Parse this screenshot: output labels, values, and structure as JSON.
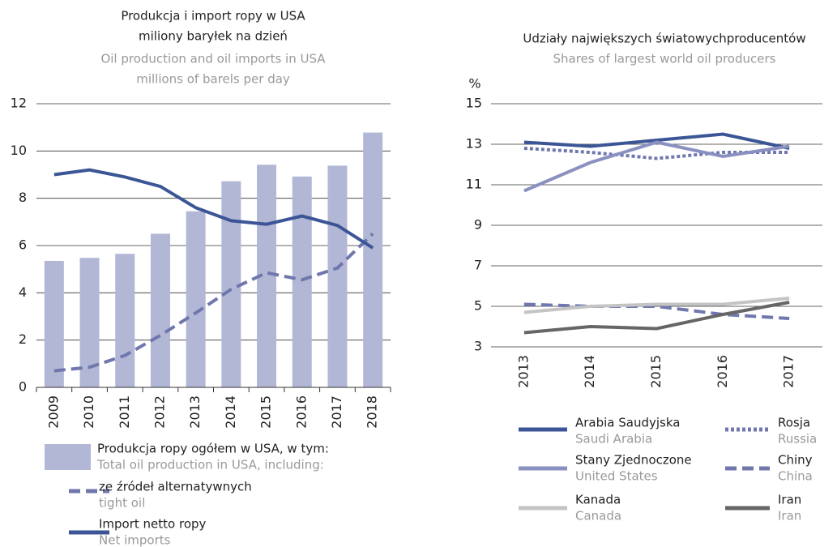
{
  "chart_data": [
    {
      "type": "combo",
      "title": "Produkcja i import ropy w USA",
      "subtitle": "miliony baryłek na dzień",
      "title_en": "Oil production and oil imports  in USA",
      "subtitle_en": "millions of barels per day",
      "categories": [
        "2009",
        "2010",
        "2011",
        "2012",
        "2013",
        "2014",
        "2015",
        "2016",
        "2017",
        "2018"
      ],
      "ylim": [
        0,
        12
      ],
      "yticks": [
        0,
        2,
        4,
        6,
        8,
        10,
        12
      ],
      "grid": true,
      "series": [
        {
          "name": "Produkcja ropy ogółem w USA, w tym:",
          "name_en": "Total oil production in USA, including:",
          "type": "bar",
          "color": "#b3b7d6",
          "values": [
            5.35,
            5.48,
            5.65,
            6.5,
            7.45,
            8.72,
            9.42,
            8.92,
            9.38,
            10.78
          ]
        },
        {
          "name": "ze źródeł alternatywnych",
          "name_en": "tight oil",
          "type": "line",
          "dash": "dashed",
          "color": "#6f77ad",
          "values": [
            0.7,
            0.85,
            1.35,
            2.2,
            3.15,
            4.15,
            4.85,
            4.55,
            5.05,
            6.5
          ]
        },
        {
          "name": "Import netto ropy",
          "name_en": "Net imports",
          "type": "line",
          "dash": "solid",
          "color": "#3b5596",
          "values": [
            9.0,
            9.2,
            8.9,
            8.5,
            7.6,
            7.05,
            6.9,
            7.25,
            6.85,
            5.9
          ]
        }
      ]
    },
    {
      "type": "line",
      "title": "Udziały największych światowychproducentów",
      "title_en": "Shares of largest world oil producers",
      "y_label": "%",
      "categories": [
        "2013",
        "2014",
        "2015",
        "2016",
        "2017"
      ],
      "ylim": [
        3,
        15
      ],
      "yticks": [
        3,
        5,
        7,
        9,
        11,
        13,
        15
      ],
      "grid": true,
      "series": [
        {
          "name": "Arabia Saudyjska",
          "name_en": "Saudi Arabia",
          "dash": "solid",
          "color": "#3b5596",
          "values": [
            13.1,
            12.9,
            13.2,
            13.5,
            12.8
          ]
        },
        {
          "name": "Rosja",
          "name_en": "Russia",
          "dash": "dotted",
          "color": "#6f77ad",
          "values": [
            12.8,
            12.6,
            12.3,
            12.6,
            12.6
          ]
        },
        {
          "name": "Stany Zjednoczone",
          "name_en": "United States",
          "dash": "solid",
          "color": "#8a90c0",
          "values": [
            10.7,
            12.1,
            13.1,
            12.4,
            12.9
          ]
        },
        {
          "name": "Chiny",
          "name_en": "China",
          "dash": "dashed",
          "color": "#6f77ad",
          "values": [
            5.1,
            5.0,
            5.0,
            4.6,
            4.4
          ]
        },
        {
          "name": "Kanada",
          "name_en": "Canada",
          "dash": "solid",
          "color": "#c4c4c4",
          "values": [
            4.7,
            5.0,
            5.1,
            5.1,
            5.4
          ]
        },
        {
          "name": "Iran",
          "name_en": "Iran",
          "dash": "solid",
          "color": "#666666",
          "values": [
            3.7,
            4.0,
            3.9,
            4.6,
            5.2
          ]
        }
      ]
    }
  ]
}
